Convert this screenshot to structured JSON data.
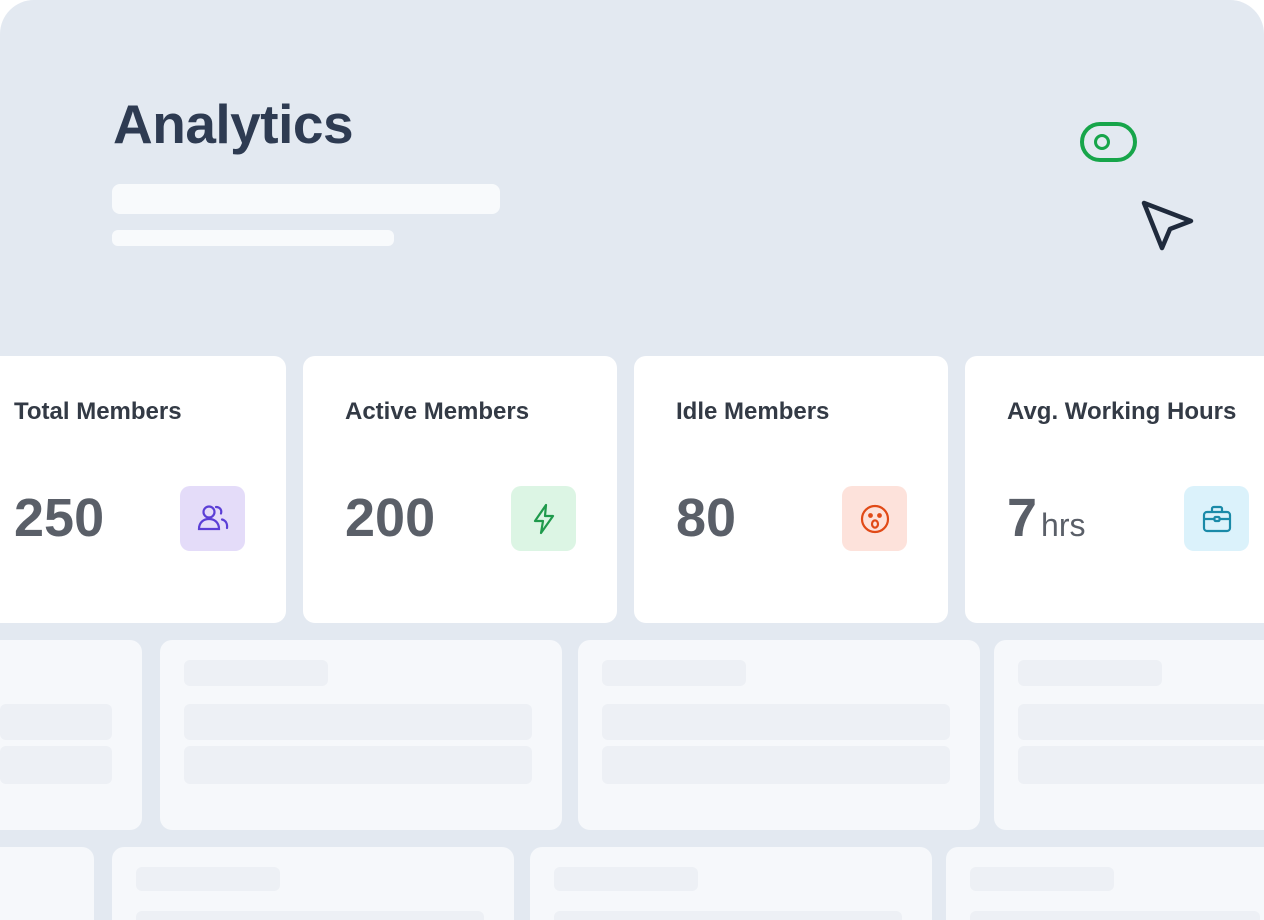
{
  "header": {
    "title": "Analytics"
  },
  "controls": {
    "toggle_icon": "toggle-switch-icon",
    "cursor_icon": "pointer-arrow-icon",
    "toggle_color": "#17a54a"
  },
  "stats": [
    {
      "label": "Total Members",
      "value": "250",
      "unit": "",
      "icon": "users-icon",
      "tile_color": "#e4dcf9",
      "icon_color": "#5b3fd6"
    },
    {
      "label": "Active Members",
      "value": "200",
      "unit": "",
      "icon": "lightning-bolt-icon",
      "tile_color": "#dcf5e4",
      "icon_color": "#1f9a4c"
    },
    {
      "label": "Idle Members",
      "value": "80",
      "unit": "",
      "icon": "surprised-face-icon",
      "tile_color": "#fde2db",
      "icon_color": "#e14a17"
    },
    {
      "label": "Avg. Working Hours",
      "value": "7",
      "unit": "hrs",
      "icon": "briefcase-icon",
      "tile_color": "#dbf2fb",
      "icon_color": "#1a8aa8"
    }
  ]
}
